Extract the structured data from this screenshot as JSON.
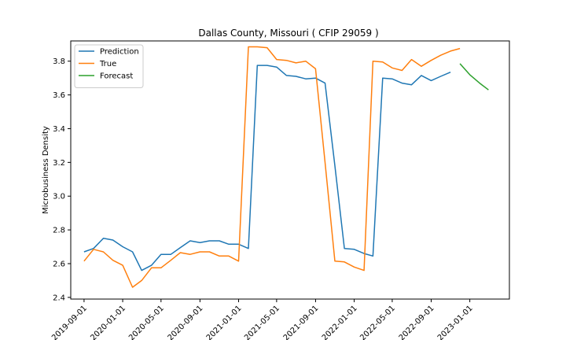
{
  "chart_data": {
    "type": "line",
    "title": "Dallas County, Missouri ( CFIP 29059 )",
    "xlabel": "",
    "ylabel": "Microbusiness Density",
    "ylim": [
      2.39,
      3.92
    ],
    "xlim": [
      "2019-07-21",
      "2023-05-06"
    ],
    "yticks": [
      2.4,
      2.6,
      2.8,
      3.0,
      3.2,
      3.4,
      3.6,
      3.8
    ],
    "ytick_labels": [
      "2.4",
      "2.6",
      "2.8",
      "3.0",
      "3.2",
      "3.4",
      "3.6",
      "3.8"
    ],
    "xticks": [
      "2019-09-01",
      "2020-01-01",
      "2020-05-01",
      "2020-09-01",
      "2021-01-01",
      "2021-05-01",
      "2021-09-01",
      "2022-01-01",
      "2022-05-01",
      "2022-09-01",
      "2023-01-01"
    ],
    "xtick_labels": [
      "2019-09-01",
      "2020-01-01",
      "2020-05-01",
      "2020-09-01",
      "2021-01-01",
      "2021-05-01",
      "2021-09-01",
      "2022-01-01",
      "2022-05-01",
      "2022-09-01",
      "2023-01-01"
    ],
    "legend": {
      "placement": "top-left"
    },
    "grid": false,
    "series": [
      {
        "name": "Prediction",
        "color": "#1f77b4",
        "x": [
          "2019-09-01",
          "2019-10-01",
          "2019-11-01",
          "2019-12-01",
          "2020-01-01",
          "2020-02-01",
          "2020-03-01",
          "2020-04-01",
          "2020-05-01",
          "2020-06-01",
          "2020-07-01",
          "2020-08-01",
          "2020-09-01",
          "2020-10-01",
          "2020-11-01",
          "2020-12-01",
          "2021-01-01",
          "2021-02-01",
          "2021-03-01",
          "2021-04-01",
          "2021-05-01",
          "2021-06-01",
          "2021-07-01",
          "2021-08-01",
          "2021-09-01",
          "2021-10-01",
          "2021-11-01",
          "2021-12-01",
          "2022-01-01",
          "2022-02-01",
          "2022-03-01",
          "2022-04-01",
          "2022-05-01",
          "2022-06-01",
          "2022-07-01",
          "2022-08-01",
          "2022-09-01",
          "2022-10-01",
          "2022-11-01"
        ],
        "values": [
          2.67,
          2.69,
          2.75,
          2.74,
          2.7,
          2.67,
          2.56,
          2.59,
          2.655,
          2.655,
          2.695,
          2.735,
          2.725,
          2.735,
          2.735,
          2.715,
          2.715,
          2.69,
          3.775,
          3.775,
          3.765,
          3.715,
          3.71,
          3.695,
          3.7,
          3.67,
          3.18,
          2.69,
          2.685,
          2.66,
          2.645,
          3.7,
          3.695,
          3.67,
          3.66,
          3.715,
          3.685,
          3.71,
          3.735
        ]
      },
      {
        "name": "True",
        "color": "#ff7f0e",
        "x": [
          "2019-09-01",
          "2019-10-01",
          "2019-11-01",
          "2019-12-01",
          "2020-01-01",
          "2020-02-01",
          "2020-03-01",
          "2020-04-01",
          "2020-05-01",
          "2020-06-01",
          "2020-07-01",
          "2020-08-01",
          "2020-09-01",
          "2020-10-01",
          "2020-11-01",
          "2020-12-01",
          "2021-01-01",
          "2021-02-01",
          "2021-03-01",
          "2021-04-01",
          "2021-05-01",
          "2021-06-01",
          "2021-07-01",
          "2021-08-01",
          "2021-09-01",
          "2021-10-01",
          "2021-11-01",
          "2021-12-01",
          "2022-01-01",
          "2022-02-01",
          "2022-03-01",
          "2022-04-01",
          "2022-05-01",
          "2022-06-01",
          "2022-07-01",
          "2022-08-01",
          "2022-09-01",
          "2022-10-01",
          "2022-11-01",
          "2022-12-01"
        ],
        "values": [
          2.615,
          2.685,
          2.67,
          2.62,
          2.59,
          2.46,
          2.5,
          2.575,
          2.575,
          2.62,
          2.665,
          2.655,
          2.67,
          2.67,
          2.645,
          2.645,
          2.615,
          3.885,
          3.885,
          3.88,
          3.81,
          3.805,
          3.79,
          3.8,
          3.755,
          3.2,
          2.615,
          2.61,
          2.58,
          2.56,
          3.8,
          3.795,
          3.76,
          3.745,
          3.81,
          3.77,
          3.805,
          3.835,
          3.86,
          3.875
        ]
      },
      {
        "name": "Forecast",
        "color": "#2ca02c",
        "x": [
          "2022-12-01",
          "2023-01-01",
          "2023-02-01",
          "2023-03-01"
        ],
        "values": [
          3.785,
          3.72,
          3.67,
          3.63
        ]
      }
    ]
  }
}
